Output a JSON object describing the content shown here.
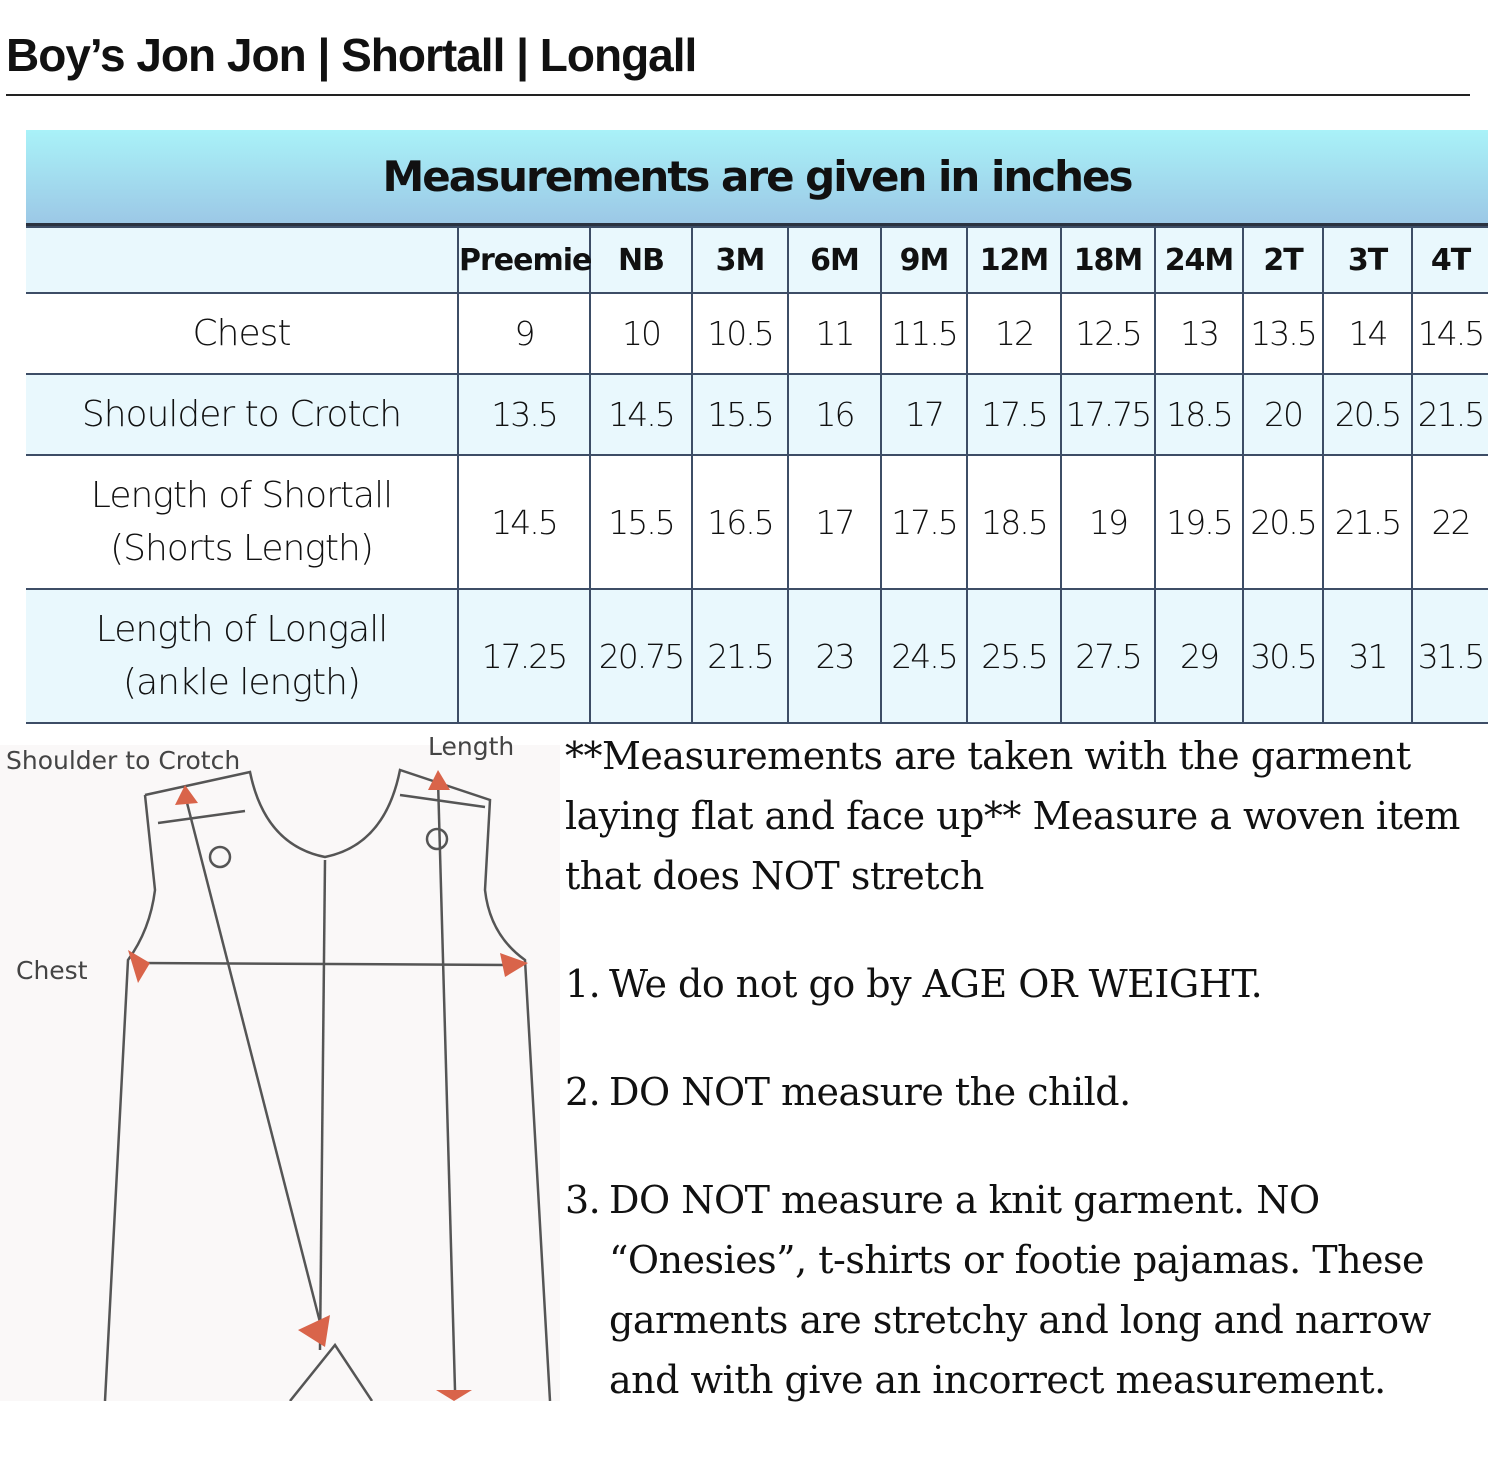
{
  "title": "Boy’s Jon Jon | Shortall | Longall",
  "table": {
    "title": "Measurements are given in inches",
    "sizes": [
      "Preemie",
      "NB",
      "3M",
      "6M",
      "9M",
      "12M",
      "18M",
      "24M",
      "2T",
      "3T",
      "4T"
    ],
    "rows": [
      {
        "label": "Chest",
        "values": [
          "9",
          "10",
          "10.5",
          "11",
          "11.5",
          "12",
          "12.5",
          "13",
          "13.5",
          "14",
          "14.5"
        ]
      },
      {
        "label": "Shoulder to Crotch",
        "values": [
          "13.5",
          "14.5",
          "15.5",
          "16",
          "17",
          "17.5",
          "17.75",
          "18.5",
          "20",
          "20.5",
          "21.5"
        ]
      },
      {
        "label": "Length of Shortall",
        "label2": "(Shorts Length)",
        "values": [
          "14.5",
          "15.5",
          "16.5",
          "17",
          "17.5",
          "18.5",
          "19",
          "19.5",
          "20.5",
          "21.5",
          "22"
        ]
      },
      {
        "label": "Length of Longall",
        "label2": "(ankle length)",
        "values": [
          "17.25",
          "20.75",
          "21.5",
          "23",
          "24.5",
          "25.5",
          "27.5",
          "29",
          "30.5",
          "31",
          "31.5"
        ]
      }
    ]
  },
  "diagram": {
    "labels": {
      "shoulder": "Shoulder to Crotch",
      "length": "Length",
      "chest": "Chest"
    },
    "arrow_color": "#d9644a"
  },
  "notes": {
    "intro": "**Measurements are taken with the garment laying flat and face up** Measure a woven item that does NOT stretch",
    "items": [
      {
        "n": "1.",
        "text": "We do not go by AGE OR WEIGHT."
      },
      {
        "n": "2.",
        "text": "DO NOT measure the child."
      },
      {
        "n": "3.",
        "text": "DO NOT measure a knit garment. NO “Onesies”, t-shirts or footie pajamas. These garments are stretchy and long and narrow and with give an incorrect measurement."
      }
    ]
  }
}
